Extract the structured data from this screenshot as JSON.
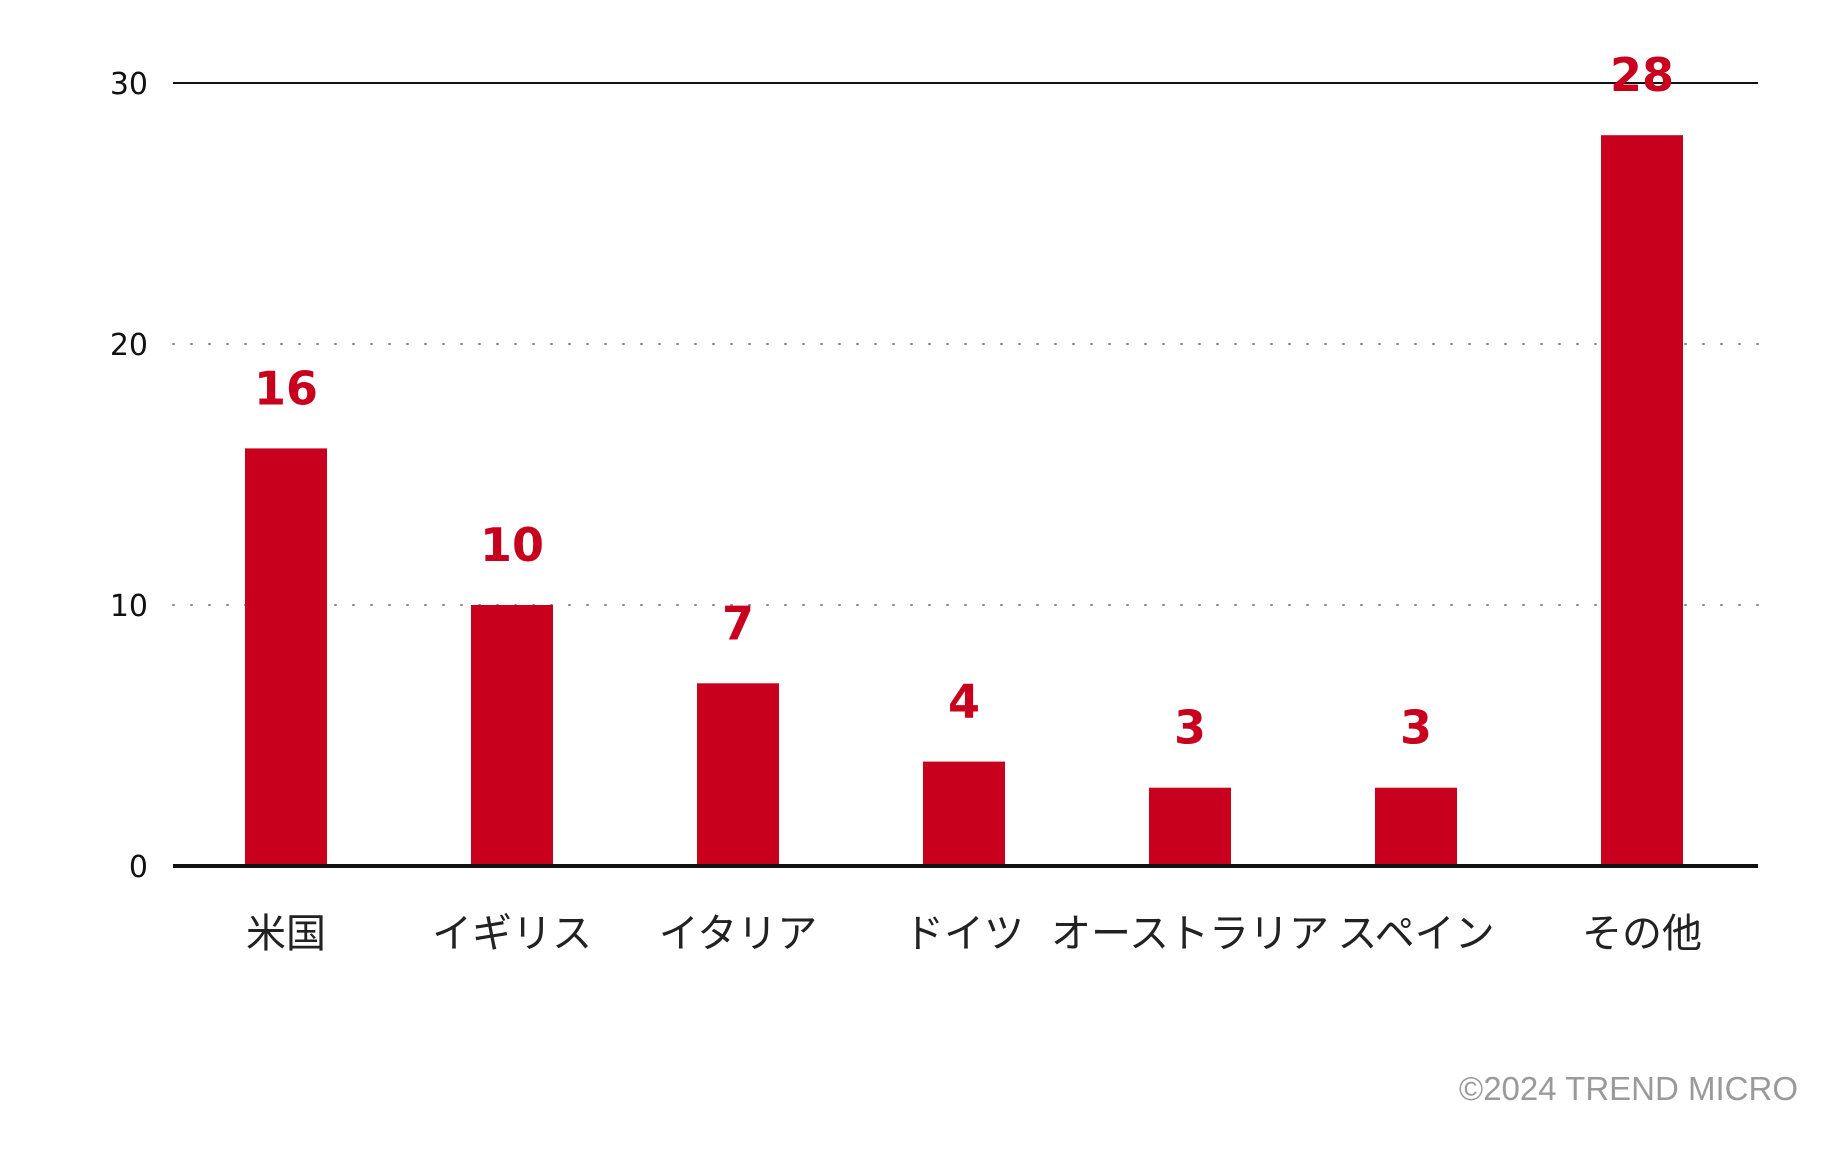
{
  "chart_data": {
    "type": "bar",
    "categories": [
      "米国",
      "イギリス",
      "イタリア",
      "ドイツ",
      "オーストラリア",
      "スペイン",
      "その他"
    ],
    "values": [
      16,
      10,
      7,
      4,
      3,
      3,
      28
    ],
    "title": "",
    "xlabel": "",
    "ylabel": "",
    "ylim": [
      0,
      30
    ],
    "yticks": [
      "0",
      "10",
      "20",
      "30"
    ],
    "grid": true,
    "legend": "none",
    "bar_color": "#c8001e",
    "data_label_color": "#c8001e"
  },
  "footer": {
    "credit": "©2024 TREND MICRO"
  }
}
